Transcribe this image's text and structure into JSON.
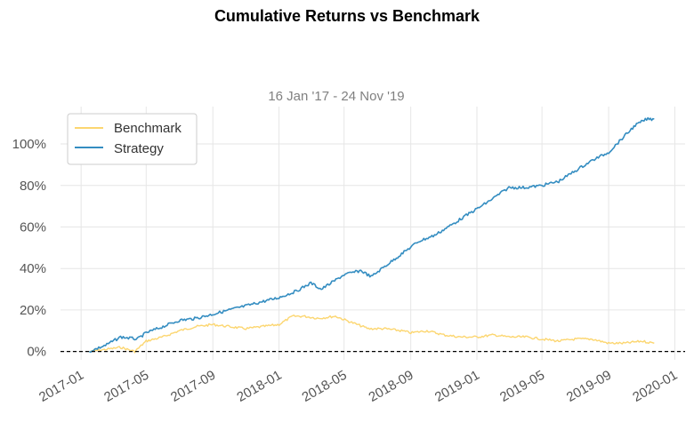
{
  "chart_data": {
    "type": "line",
    "title": "Cumulative Returns vs Benchmark",
    "subtitle": "16 Jan '17 - 24 Nov '19",
    "xlabel": "",
    "ylabel": "",
    "x_range": [
      "2016-11-24",
      "2020-01-20"
    ],
    "ylim": [
      -0.04,
      1.18
    ],
    "y_ticks": [
      0,
      0.2,
      0.4,
      0.6,
      0.8,
      1.0
    ],
    "y_tick_labels": [
      "0%",
      "20%",
      "40%",
      "60%",
      "80%",
      "100%"
    ],
    "x_ticks": [
      "2017-01-01",
      "2017-05-01",
      "2017-09-01",
      "2018-01-01",
      "2018-05-01",
      "2018-09-01",
      "2019-01-01",
      "2019-05-01",
      "2019-09-01",
      "2020-01-01"
    ],
    "x_tick_labels": [
      "2017-01",
      "2017-05",
      "2017-09",
      "2018-01",
      "2018-05",
      "2018-09",
      "2019-01",
      "2019-05",
      "2019-09",
      "2020-01"
    ],
    "grid": true,
    "legend_position": "top-left",
    "baseline": 0,
    "series": [
      {
        "name": "Benchmark",
        "color": "#fcd670",
        "points": [
          [
            "2017-01-16",
            0.0
          ],
          [
            "2017-02-15",
            0.01
          ],
          [
            "2017-03-15",
            0.02
          ],
          [
            "2017-04-10",
            0.0
          ],
          [
            "2017-05-01",
            0.05
          ],
          [
            "2017-06-01",
            0.07
          ],
          [
            "2017-07-01",
            0.1
          ],
          [
            "2017-08-01",
            0.12
          ],
          [
            "2017-09-01",
            0.13
          ],
          [
            "2017-10-01",
            0.12
          ],
          [
            "2017-11-01",
            0.11
          ],
          [
            "2017-12-01",
            0.12
          ],
          [
            "2018-01-01",
            0.13
          ],
          [
            "2018-01-26",
            0.17
          ],
          [
            "2018-02-15",
            0.17
          ],
          [
            "2018-03-15",
            0.16
          ],
          [
            "2018-04-15",
            0.17
          ],
          [
            "2018-05-15",
            0.14
          ],
          [
            "2018-06-15",
            0.11
          ],
          [
            "2018-07-15",
            0.11
          ],
          [
            "2018-08-15",
            0.1
          ],
          [
            "2018-09-01",
            0.09
          ],
          [
            "2018-10-01",
            0.1
          ],
          [
            "2018-11-01",
            0.08
          ],
          [
            "2018-12-01",
            0.07
          ],
          [
            "2019-01-01",
            0.07
          ],
          [
            "2019-02-01",
            0.08
          ],
          [
            "2019-03-01",
            0.07
          ],
          [
            "2019-04-01",
            0.07
          ],
          [
            "2019-05-01",
            0.06
          ],
          [
            "2019-06-01",
            0.05
          ],
          [
            "2019-07-01",
            0.06
          ],
          [
            "2019-08-01",
            0.06
          ],
          [
            "2019-09-01",
            0.04
          ],
          [
            "2019-10-01",
            0.04
          ],
          [
            "2019-11-01",
            0.05
          ],
          [
            "2019-11-24",
            0.04
          ]
        ]
      },
      {
        "name": "Strategy",
        "color": "#348dc1",
        "points": [
          [
            "2017-01-16",
            0.0
          ],
          [
            "2017-02-15",
            0.03
          ],
          [
            "2017-03-15",
            0.07
          ],
          [
            "2017-04-15",
            0.06
          ],
          [
            "2017-05-01",
            0.09
          ],
          [
            "2017-06-01",
            0.12
          ],
          [
            "2017-07-01",
            0.15
          ],
          [
            "2017-08-01",
            0.16
          ],
          [
            "2017-09-01",
            0.18
          ],
          [
            "2017-10-01",
            0.2
          ],
          [
            "2017-11-01",
            0.22
          ],
          [
            "2017-12-01",
            0.24
          ],
          [
            "2018-01-01",
            0.26
          ],
          [
            "2018-02-01",
            0.29
          ],
          [
            "2018-03-01",
            0.33
          ],
          [
            "2018-03-20",
            0.3
          ],
          [
            "2018-04-01",
            0.32
          ],
          [
            "2018-05-01",
            0.37
          ],
          [
            "2018-06-01",
            0.39
          ],
          [
            "2018-06-20",
            0.36
          ],
          [
            "2018-07-15",
            0.41
          ],
          [
            "2018-08-15",
            0.47
          ],
          [
            "2018-09-15",
            0.53
          ],
          [
            "2018-10-15",
            0.56
          ],
          [
            "2018-11-15",
            0.61
          ],
          [
            "2018-12-15",
            0.66
          ],
          [
            "2019-01-15",
            0.71
          ],
          [
            "2019-02-01",
            0.74
          ],
          [
            "2019-03-01",
            0.79
          ],
          [
            "2019-04-01",
            0.79
          ],
          [
            "2019-05-01",
            0.8
          ],
          [
            "2019-06-01",
            0.82
          ],
          [
            "2019-07-01",
            0.87
          ],
          [
            "2019-08-01",
            0.92
          ],
          [
            "2019-09-01",
            0.96
          ],
          [
            "2019-10-01",
            1.04
          ],
          [
            "2019-10-20",
            1.09
          ],
          [
            "2019-11-10",
            1.12
          ],
          [
            "2019-11-24",
            1.12
          ]
        ]
      }
    ]
  }
}
